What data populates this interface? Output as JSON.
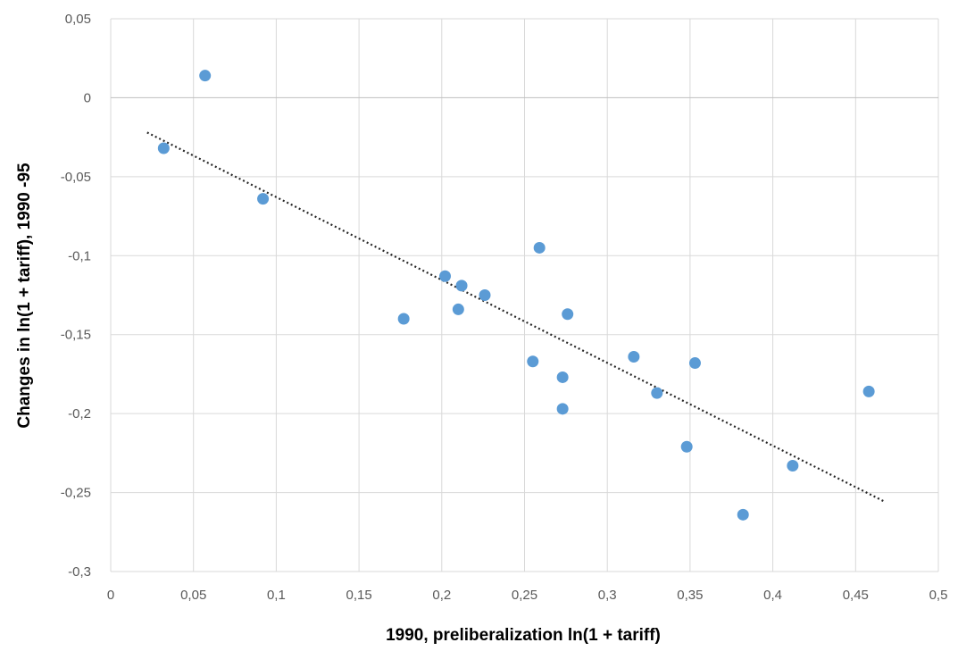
{
  "chart_data": {
    "type": "scatter",
    "title": "",
    "xlabel": "1990, preliberalization ln(1 + tariff)",
    "ylabel": "Changes in ln(1 + tariff), 1990 -95",
    "xlim": [
      0,
      0.5
    ],
    "ylim": [
      -0.3,
      0.05
    ],
    "x_ticks": [
      0,
      0.05,
      0.1,
      0.15,
      0.2,
      0.25,
      0.3,
      0.35,
      0.4,
      0.45,
      0.5
    ],
    "x_tick_labels": [
      "0",
      "0,05",
      "0,1",
      "0,15",
      "0,2",
      "0,25",
      "0,3",
      "0,35",
      "0,4",
      "0,45",
      "0,5"
    ],
    "y_ticks": [
      0.05,
      0,
      -0.05,
      -0.1,
      -0.15,
      -0.2,
      -0.25,
      -0.3
    ],
    "y_tick_labels": [
      "0,05",
      "0",
      "-0,05",
      "-0,1",
      "-0,15",
      "-0,2",
      "-0,25",
      "-0,3"
    ],
    "grid": true,
    "legend": "none",
    "series": [
      {
        "color": "#5b9bd5",
        "points": [
          {
            "x": 0.032,
            "y": -0.032
          },
          {
            "x": 0.057,
            "y": 0.014
          },
          {
            "x": 0.092,
            "y": -0.064
          },
          {
            "x": 0.177,
            "y": -0.14
          },
          {
            "x": 0.202,
            "y": -0.113
          },
          {
            "x": 0.212,
            "y": -0.119
          },
          {
            "x": 0.21,
            "y": -0.134
          },
          {
            "x": 0.226,
            "y": -0.125
          },
          {
            "x": 0.259,
            "y": -0.095
          },
          {
            "x": 0.276,
            "y": -0.137
          },
          {
            "x": 0.255,
            "y": -0.167
          },
          {
            "x": 0.273,
            "y": -0.177
          },
          {
            "x": 0.273,
            "y": -0.197
          },
          {
            "x": 0.316,
            "y": -0.164
          },
          {
            "x": 0.33,
            "y": -0.187
          },
          {
            "x": 0.348,
            "y": -0.221
          },
          {
            "x": 0.353,
            "y": -0.168
          },
          {
            "x": 0.382,
            "y": -0.264
          },
          {
            "x": 0.412,
            "y": -0.233
          },
          {
            "x": 0.458,
            "y": -0.186
          }
        ]
      }
    ],
    "trendline": {
      "style": "dotted",
      "color": "#262626",
      "x0": 0.022,
      "y0": -0.022,
      "x1": 0.468,
      "y1": -0.256
    }
  }
}
